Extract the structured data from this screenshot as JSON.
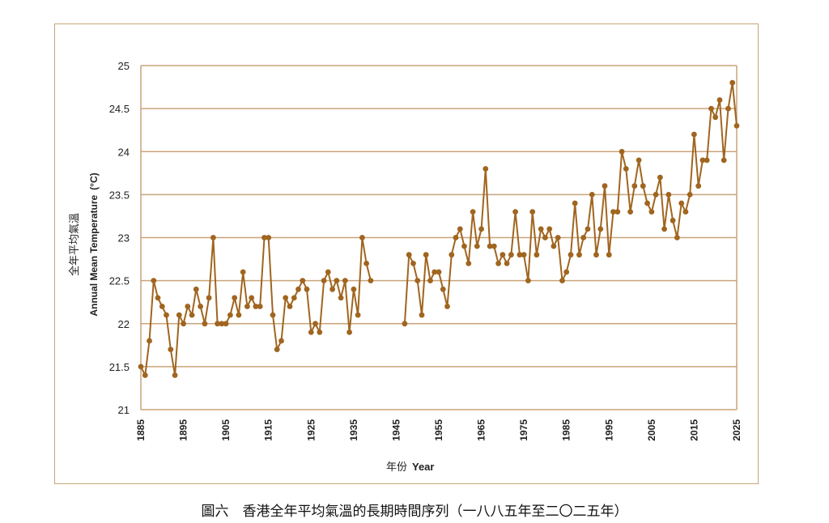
{
  "chart_data": {
    "type": "line",
    "title": "",
    "xlabel_zh": "年份",
    "xlabel_en": "Year",
    "ylabel_zh": "全年平均氣溫",
    "ylabel_en": "Annual Mean Temperature",
    "ylabel_unit": "(°C)",
    "xlim": [
      1885,
      2025
    ],
    "ylim": [
      21,
      25
    ],
    "y_ticks": [
      "21",
      "21.5",
      "22",
      "22.5",
      "23",
      "23.5",
      "24",
      "24.5",
      "25"
    ],
    "x_ticks": [
      "1885",
      "1895",
      "1905",
      "1915",
      "1925",
      "1935",
      "1945",
      "1955",
      "1965",
      "1975",
      "1985",
      "1995",
      "2005",
      "2015",
      "2025"
    ],
    "grid": "horizontal",
    "colors": {
      "series": "#a0651f",
      "grid": "#c9a47a",
      "frame": "#c9a47a"
    },
    "series": [
      {
        "name": "Annual Mean Temperature",
        "segments": [
          {
            "x": [
              1885,
              1886,
              1887,
              1888,
              1889,
              1890,
              1891,
              1892,
              1893,
              1894,
              1895,
              1896,
              1897,
              1898,
              1899,
              1900,
              1901,
              1902,
              1903,
              1904,
              1905,
              1906,
              1907,
              1908,
              1909,
              1910,
              1911,
              1912,
              1913,
              1914,
              1915,
              1916,
              1917,
              1918,
              1919,
              1920,
              1921,
              1922,
              1923,
              1924,
              1925,
              1926,
              1927,
              1928,
              1929,
              1930,
              1931,
              1932,
              1933,
              1934,
              1935,
              1936,
              1937,
              1938,
              1939
            ],
            "y": [
              21.5,
              21.4,
              21.8,
              22.5,
              22.3,
              22.2,
              22.1,
              21.7,
              21.4,
              22.1,
              22.0,
              22.2,
              22.1,
              22.4,
              22.2,
              22.0,
              22.3,
              23.0,
              22.0,
              22.0,
              22.0,
              22.1,
              22.3,
              22.1,
              22.6,
              22.2,
              22.3,
              22.2,
              22.2,
              23.0,
              23.0,
              22.1,
              21.7,
              21.8,
              22.3,
              22.2,
              22.3,
              22.4,
              22.5,
              22.4,
              21.9,
              22.0,
              21.9,
              22.5,
              22.6,
              22.4,
              22.5,
              22.3,
              22.5,
              21.9,
              22.4,
              22.1,
              23.0,
              22.7,
              22.5
            ]
          },
          {
            "x": [
              1947,
              1948,
              1949,
              1950,
              1951,
              1952,
              1953,
              1954,
              1955,
              1956,
              1957,
              1958,
              1959,
              1960,
              1961,
              1962,
              1963,
              1964,
              1965,
              1966,
              1967,
              1968,
              1969,
              1970,
              1971,
              1972,
              1973,
              1974,
              1975,
              1976,
              1977,
              1978,
              1979,
              1980,
              1981,
              1982,
              1983,
              1984,
              1985,
              1986,
              1987,
              1988,
              1989,
              1990,
              1991,
              1992,
              1993,
              1994,
              1995,
              1996,
              1997,
              1998,
              1999,
              2000,
              2001,
              2002,
              2003,
              2004,
              2005,
              2006,
              2007,
              2008,
              2009,
              2010,
              2011,
              2012,
              2013,
              2014,
              2015,
              2016,
              2017,
              2018,
              2019,
              2020,
              2021,
              2022,
              2023,
              2024,
              2025
            ],
            "y": [
              22.0,
              22.8,
              22.7,
              22.5,
              22.1,
              22.8,
              22.5,
              22.6,
              22.6,
              22.4,
              22.2,
              22.8,
              23.0,
              23.1,
              22.9,
              22.7,
              23.3,
              22.9,
              23.1,
              23.8,
              22.9,
              22.9,
              22.7,
              22.8,
              22.7,
              22.8,
              23.3,
              22.8,
              22.8,
              22.5,
              23.3,
              22.8,
              23.1,
              23.0,
              23.1,
              22.9,
              23.0,
              22.5,
              22.6,
              22.8,
              23.4,
              22.8,
              23.0,
              23.1,
              23.5,
              22.8,
              23.1,
              23.6,
              22.8,
              23.3,
              23.3,
              24.0,
              23.8,
              23.3,
              23.6,
              23.9,
              23.6,
              23.4,
              23.3,
              23.5,
              23.7,
              23.1,
              23.5,
              23.2,
              23.0,
              23.4,
              23.3,
              23.5,
              24.2,
              23.6,
              23.9,
              23.9,
              24.5,
              24.4,
              24.6,
              23.9,
              24.5,
              24.8,
              24.3
            ]
          }
        ]
      }
    ]
  },
  "caption": "圖六　香港全年平均氣溫的長期時間序列（一八八五年至二〇二五年）"
}
